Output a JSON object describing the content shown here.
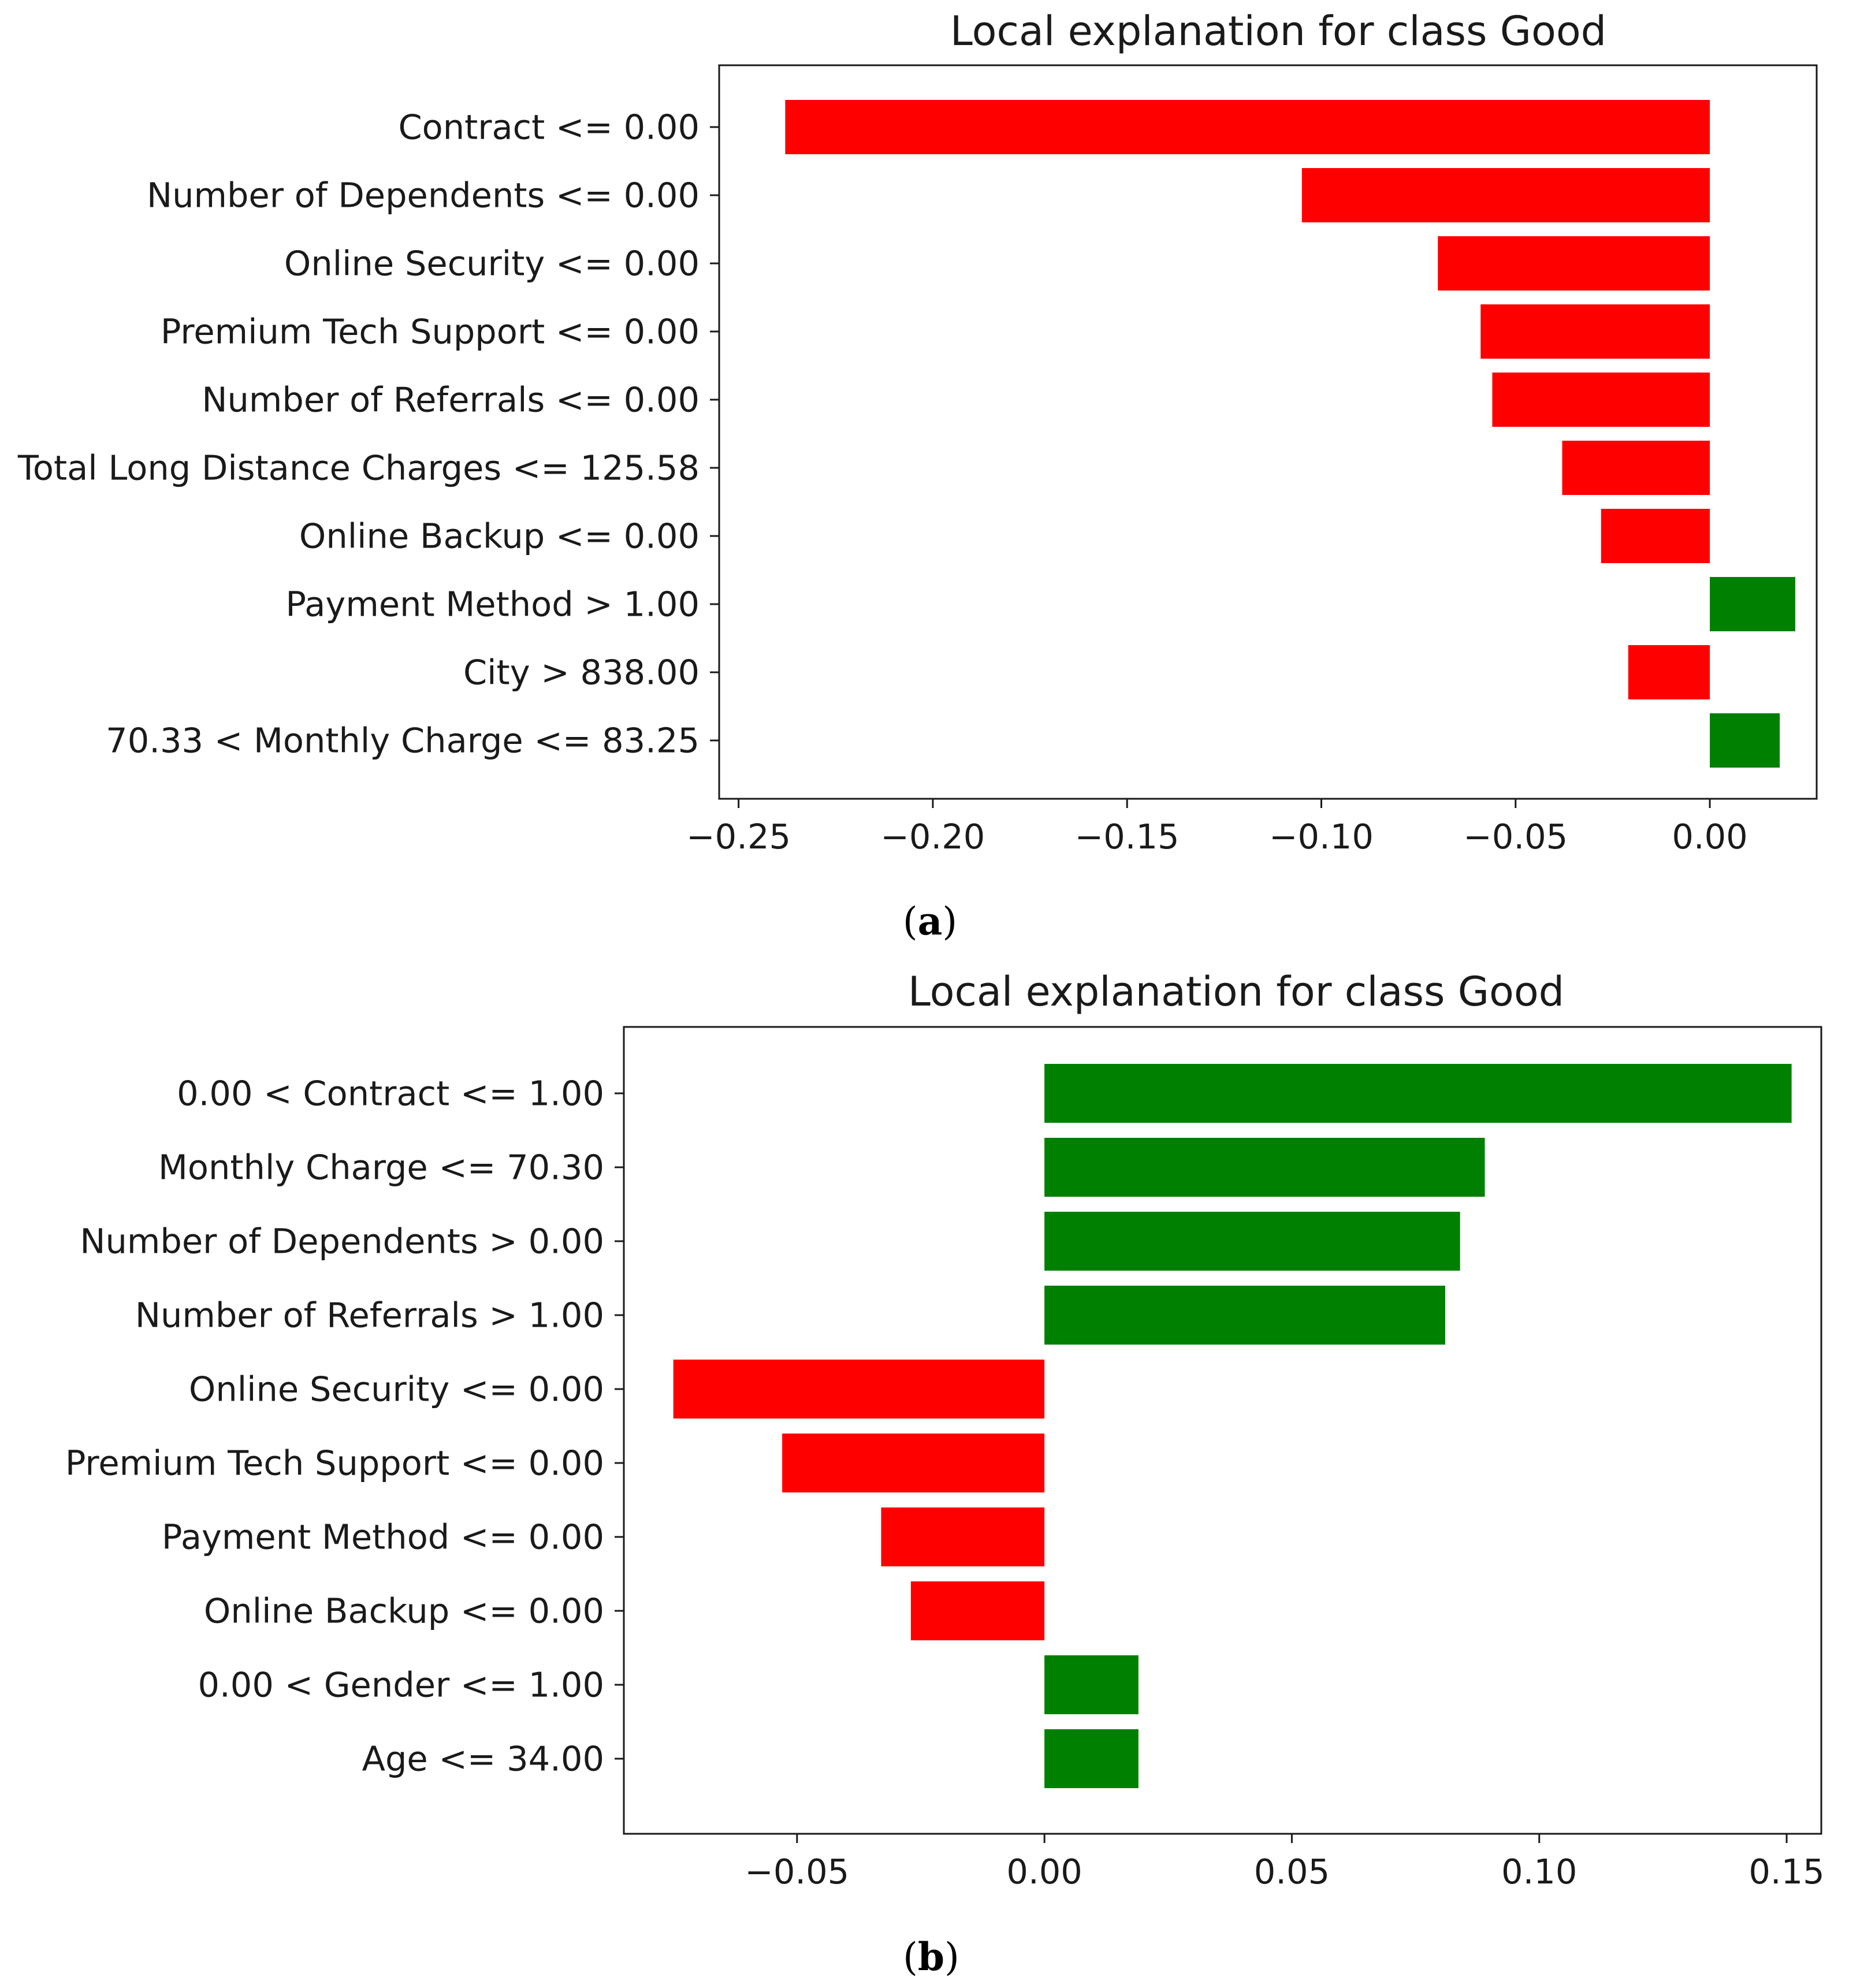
{
  "chart_data": [
    {
      "type": "bar",
      "orientation": "horizontal",
      "panel_caption": "a",
      "title": "Local explanation for class Good",
      "xlabel": "",
      "ylabel": "",
      "xlim": [
        -0.255,
        0.0275
      ],
      "xticks": [
        -0.25,
        -0.2,
        -0.15,
        -0.1,
        -0.05,
        0.0
      ],
      "xtick_labels": [
        "−0.25",
        "−0.20",
        "−0.15",
        "−0.10",
        "−0.05",
        "0.00"
      ],
      "positive_color": "#008000",
      "negative_color": "#ff0000",
      "categories": [
        "Contract <= 0.00",
        "Number of Dependents <= 0.00",
        "Online Security <= 0.00",
        "Premium Tech Support <= 0.00",
        "Number of Referrals <= 0.00",
        "Total Long Distance Charges <= 125.58",
        "Online Backup <= 0.00",
        "Payment Method > 1.00",
        "City > 838.00",
        "70.33 < Monthly Charge <= 83.25"
      ],
      "values": [
        -0.238,
        -0.105,
        -0.07,
        -0.059,
        -0.056,
        -0.038,
        -0.028,
        0.022,
        -0.021,
        0.018
      ]
    },
    {
      "type": "bar",
      "orientation": "horizontal",
      "panel_caption": "b",
      "title": "Local explanation for class Good",
      "xlabel": "",
      "ylabel": "",
      "xlim": [
        -0.085,
        0.157
      ],
      "xticks": [
        -0.05,
        0.0,
        0.05,
        0.1,
        0.15
      ],
      "xtick_labels": [
        "−0.05",
        "0.00",
        "0.05",
        "0.10",
        "0.15"
      ],
      "positive_color": "#008000",
      "negative_color": "#ff0000",
      "categories": [
        "0.00 < Contract <= 1.00",
        "Monthly Charge <= 70.30",
        "Number of Dependents > 0.00",
        "Number of Referrals > 1.00",
        "Online Security <= 0.00",
        "Premium Tech Support <= 0.00",
        "Payment Method <= 0.00",
        "Online Backup <= 0.00",
        "0.00 < Gender <= 1.00",
        "Age <= 34.00"
      ],
      "values": [
        0.151,
        0.089,
        0.084,
        0.081,
        -0.075,
        -0.053,
        -0.033,
        -0.027,
        0.019,
        0.019
      ]
    }
  ]
}
